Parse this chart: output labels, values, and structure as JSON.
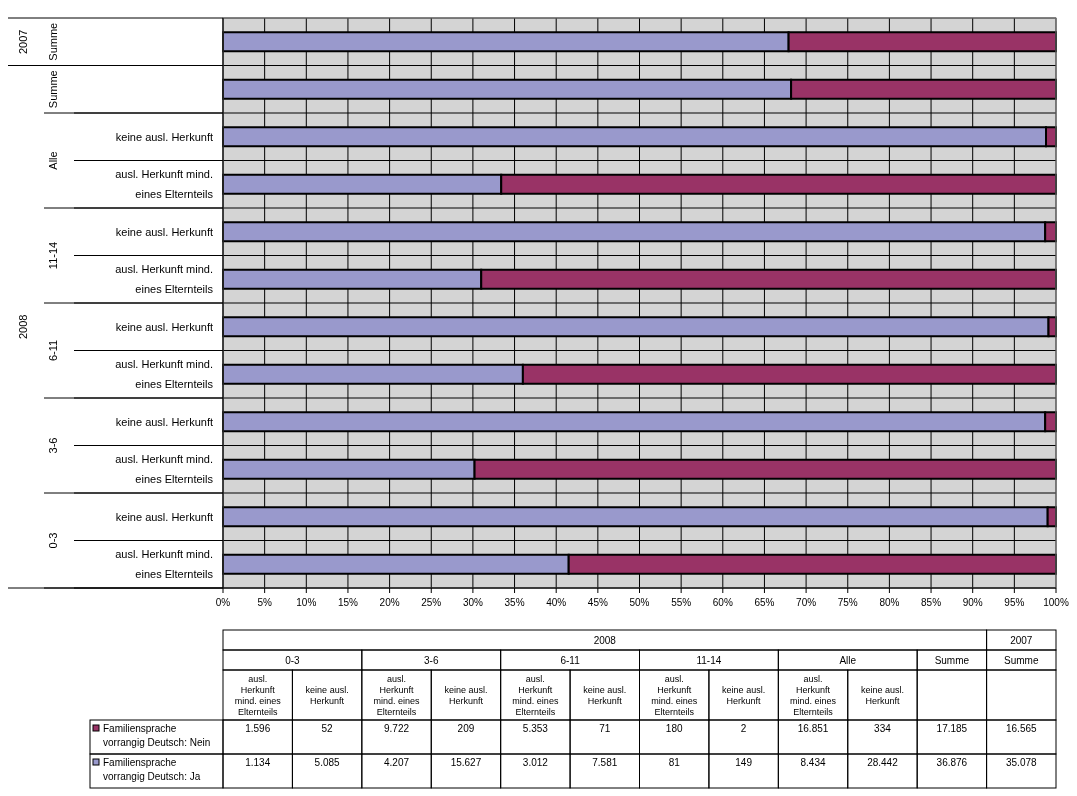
{
  "chart_data": {
    "type": "bar",
    "orientation": "horizontal",
    "stacked": true,
    "categories": [
      null,
      null,
      "keine ausl. Herkunft",
      "ausl. Herkunft mind. eines Elternteils",
      "keine ausl. Herkunft",
      "ausl. Herkunft mind. eines Elternteils",
      "keine ausl. Herkunft",
      "ausl. Herkunft mind. eines Elternteils",
      "keine ausl. Herkunft",
      "ausl. Herkunft mind. eines Elternteils",
      "keine ausl. Herkunft",
      "ausl. Herkunft mind. eines Elternteils"
    ],
    "series": [
      {
        "name": "Familiensprache vorrangig Deutsch: Ja",
        "color": "#9999cc",
        "values": [
          67.9,
          68.2,
          98.8,
          33.4,
          98.7,
          31.0,
          99.1,
          36.0,
          98.7,
          30.2,
          99.0,
          41.5
        ]
      },
      {
        "name": "Familiensprache vorrangig Deutsch: Nein",
        "color": "#993366",
        "values": [
          32.1,
          31.8,
          1.2,
          66.6,
          1.3,
          69.0,
          0.9,
          64.0,
          1.3,
          69.8,
          1.0,
          58.5
        ]
      }
    ],
    "xlim": [
      0,
      100
    ],
    "xticks": [
      {
        "value": 0,
        "label": "0%"
      },
      {
        "value": 5,
        "label": "5%"
      },
      {
        "value": 10,
        "label": "10%"
      },
      {
        "value": 15,
        "label": "15%"
      },
      {
        "value": 20,
        "label": "20%"
      },
      {
        "value": 25,
        "label": "25%"
      },
      {
        "value": 30,
        "label": "30%"
      },
      {
        "value": 35,
        "label": "35%"
      },
      {
        "value": 40,
        "label": "40%"
      },
      {
        "value": 45,
        "label": "45%"
      },
      {
        "value": 50,
        "label": "50%"
      },
      {
        "value": 55,
        "label": "55%"
      },
      {
        "value": 60,
        "label": "60%"
      },
      {
        "value": 65,
        "label": "65%"
      },
      {
        "value": 70,
        "label": "70%"
      },
      {
        "value": 75,
        "label": "75%"
      },
      {
        "value": 80,
        "label": "80%"
      },
      {
        "value": 85,
        "label": "85%"
      },
      {
        "value": 90,
        "label": "90%"
      },
      {
        "value": 95,
        "label": "95%"
      },
      {
        "value": 100,
        "label": "100%"
      }
    ],
    "annotations": [
      "2007",
      "Summe",
      "2008",
      "Summe",
      "Alle",
      "11-14",
      "6-11",
      "3-6",
      "0-3",
      "1.596",
      "52",
      "9.722",
      "209",
      "5.353",
      "71",
      "180",
      "2",
      "16.851",
      "334",
      "17.185",
      "16.565",
      "1.134",
      "5.085",
      "4.207",
      "15.627",
      "3.012",
      "7.581",
      "81",
      "149",
      "8.434",
      "28.442",
      "36.876",
      "35.078"
    ],
    "grid": true,
    "legend": "bottom left"
  }
}
